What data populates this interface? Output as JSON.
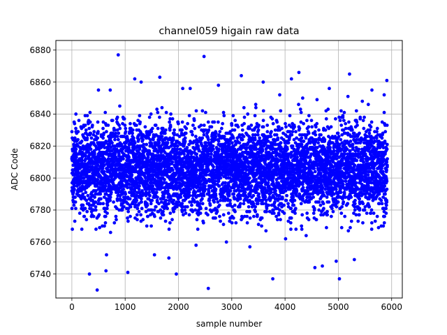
{
  "chart_data": {
    "type": "scatter",
    "title": "channel059 higain raw data",
    "xlabel": "sample number",
    "ylabel": "ADC Code",
    "xlim": [
      -300,
      6200
    ],
    "ylim": [
      6725,
      6886
    ],
    "xticks": [
      0,
      1000,
      2000,
      3000,
      4000,
      5000,
      6000
    ],
    "yticks": [
      6740,
      6760,
      6780,
      6800,
      6820,
      6840,
      6860,
      6880
    ],
    "grid": true,
    "marker_color": "#0000ff",
    "n_samples": 5920,
    "series": [
      {
        "x": [
          0,
          45,
          90,
          135,
          180,
          225,
          270,
          315,
          360,
          405,
          450,
          495,
          540,
          585,
          630,
          675,
          720,
          765,
          810,
          855,
          900,
          945,
          990,
          1035,
          1080,
          1125,
          1170,
          1215,
          1260,
          1305,
          1350,
          1395,
          1440,
          1485,
          1530,
          1575,
          1620,
          1665,
          1710,
          1755,
          1800,
          1845,
          1890,
          1935,
          1980,
          2025,
          2070,
          2115,
          2160,
          2205,
          2250,
          2295,
          2340,
          2385,
          2430,
          2475,
          2520,
          2565,
          2610,
          2655,
          2700,
          2745,
          2790,
          2835,
          2880,
          2925,
          2970,
          3015,
          3060,
          3105,
          3150,
          3195,
          3240,
          3285,
          3330,
          3375,
          3420,
          3465,
          3510,
          3555,
          3600,
          3645,
          3690,
          3735,
          3780,
          3825,
          3870,
          3915,
          3960,
          4005,
          4050,
          4095,
          4140,
          4185,
          4230,
          4275,
          4320,
          4365,
          4410,
          4455,
          4500,
          4545,
          4590,
          4635,
          4680,
          4725,
          4770,
          4815,
          4860,
          4905,
          4950,
          4995,
          5040,
          5085,
          5130,
          5175,
          5220,
          5265,
          5310,
          5355,
          5400,
          5445,
          5490,
          5535,
          5580,
          5625,
          5670,
          5715,
          5760,
          5805,
          5850,
          5895,
          870,
          2480,
          475,
          4260,
          5210,
          2560,
          3770,
          5020,
          330,
          1960,
          1650,
          3180,
          4560,
          2220,
          4830,
          5630,
          3590,
          650,
          1820,
          1300,
          4960,
          2750,
          5450,
          3900,
          1050,
          720,
          2330,
          4120,
          5300,
          2080,
          1550,
          3450,
          640,
          5860,
          4700,
          2900,
          3340,
          1180,
          5910
        ],
        "y": [
          6812,
          6795,
          6828,
          6803,
          6781,
          6818,
          6798,
          6836,
          6790,
          6822,
          6806,
          6776,
          6815,
          6831,
          6799,
          6785,
          6824,
          6809,
          6793,
          6838,
          6817,
          6780,
          6802,
          6826,
          6811,
          6791,
          6834,
          6807,
          6779,
          6820,
          6814,
          6797,
          6829,
          6784,
          6805,
          6833,
          6800,
          6819,
          6788,
          6825,
          6810,
          6796,
          6837,
          6782,
          6816,
          6804,
          6827,
          6792,
          6813,
          6839,
          6801,
          6786,
          6821,
          6808,
          6794,
          6830,
          6778,
          6815,
          6803,
          6823,
          6789,
          6835,
          6806,
          6818,
          6797,
          6828,
          6784,
          6811,
          6800,
          6825,
          6792,
          6833,
          6808,
          6779,
          6819,
          6804,
          6830,
          6787,
          6814,
          6799,
          6826,
          6812,
          6795,
          6838,
          6783,
          6817,
          6805,
          6822,
          6791,
          6834,
          6809,
          6796,
          6829,
          6780,
          6813,
          6802,
          6827,
          6790,
          6836,
          6807,
          6818,
          6794,
          6824,
          6785,
          6810,
          6831,
          6798,
          6821,
          6782,
          6815,
          6803,
          6828,
          6793,
          6839,
          6806,
          6788,
          6820,
          6812,
          6797,
          6833,
          6781,
          6816,
          6804,
          6826,
          6790,
          6835,
          6809,
          6795,
          6823,
          6786,
          6814,
          6800,
          6877,
          6876,
          6730,
          6866,
          6865,
          6731,
          6737,
          6737,
          6740,
          6740,
          6863,
          6864,
          6744,
          6856,
          6856,
          6855,
          6860,
          6752,
          6750,
          6860,
          6748,
          6858,
          6848,
          6852,
          6741,
          6855,
          6758,
          6862,
          6749,
          6856,
          6752,
          6846,
          6742,
          6852,
          6745,
          6760,
          6757,
          6862,
          6861
        ]
      }
    ]
  }
}
